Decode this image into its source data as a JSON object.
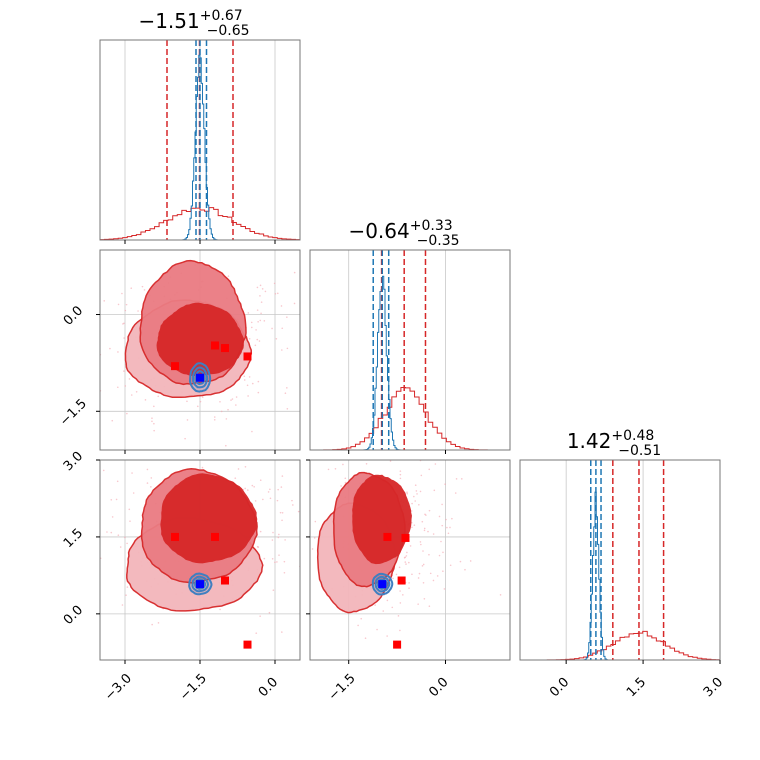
{
  "chart_data": {
    "type": "corner",
    "parameters": [
      "p1",
      "p2",
      "p3"
    ],
    "colors": {
      "wide": "#d62728",
      "narrow": "#1f77b4",
      "points_wide": "#ff0000",
      "points_narrow": "#0000ff",
      "grid": "#c8c8c8"
    },
    "titles": [
      {
        "median": "−1.51",
        "plus": "+0.67",
        "minus": "−0.65"
      },
      {
        "median": "−0.64",
        "plus": "+0.33",
        "minus": "−0.35"
      },
      {
        "median": "1.42",
        "plus": "+0.48",
        "minus": "−0.51"
      }
    ],
    "ranges": [
      [
        -3.5,
        0.5
      ],
      [
        -2.1,
        1.0
      ],
      [
        -0.9,
        3.0
      ]
    ],
    "ticks": {
      "p1": [
        -3.0,
        -1.5,
        0.0
      ],
      "p2": [
        -1.5,
        0.0
      ],
      "p3": [
        0.0,
        1.5,
        3.0
      ]
    },
    "tick_labels": {
      "p1": [
        "−3.0",
        "−1.5",
        "0.0"
      ],
      "p2": [
        "−1.5",
        "0.0"
      ],
      "p3": [
        "0.0",
        "1.5",
        "3.0"
      ]
    },
    "quantile_lines": {
      "narrow": [
        [
          -1.58,
          -1.5,
          -1.37
        ],
        [
          -1.12,
          -0.98,
          -0.88
        ],
        [
          0.48,
          0.58,
          0.68
        ]
      ],
      "wide": [
        [
          -2.16,
          -1.51,
          -0.84
        ],
        [
          -0.99,
          -0.64,
          -0.31
        ],
        [
          0.91,
          1.42,
          1.9
        ]
      ]
    },
    "histograms": [
      {
        "param": "p1",
        "wide_mu": -1.51,
        "wide_sigma": 0.66,
        "wide_peak": 0.16,
        "narrow_mu": -1.5,
        "narrow_sigma": 0.09,
        "narrow_peak": 0.9
      },
      {
        "param": "p2",
        "wide_mu": -0.62,
        "wide_sigma": 0.34,
        "wide_peak": 0.29,
        "narrow_mu": -0.98,
        "narrow_sigma": 0.07,
        "narrow_peak": 0.85
      },
      {
        "param": "p3",
        "wide_mu": 1.42,
        "wide_sigma": 0.5,
        "wide_peak": 0.14,
        "narrow_mu": 0.58,
        "narrow_sigma": 0.06,
        "narrow_peak": 0.8
      }
    ],
    "scatter_2d": [
      {
        "x_param": "p1",
        "y_param": "p2",
        "wide_center": [
          -1.55,
          -0.55
        ],
        "wide_extent": [
          [
            -3.0,
            -1.3,
            1.25,
            0.75
          ],
          [
            -2.7,
            -1.1,
            1.05,
            0.95
          ],
          [
            -2.35,
            -0.95,
            0.85,
            0.55
          ]
        ],
        "narrow_center": [
          -1.5,
          -0.98
        ],
        "narrow_extent": [
          0.2,
          0.22
        ],
        "red_points": [
          [
            -2.0,
            -0.8
          ],
          [
            -1.2,
            -0.48
          ],
          [
            -1.0,
            -0.52
          ],
          [
            -0.55,
            -0.65
          ]
        ],
        "blue_point": [
          -1.5,
          -0.98
        ]
      },
      {
        "x_param": "p1",
        "y_param": "p3",
        "wide_center": [
          -1.5,
          1.5
        ],
        "wide_extent": [
          [
            -3.0,
            0.05,
            1.35,
            0.9
          ],
          [
            -2.7,
            0.6,
            1.15,
            1.1
          ],
          [
            -2.3,
            1.0,
            0.95,
            0.85
          ]
        ],
        "narrow_center": [
          -1.5,
          0.58
        ],
        "narrow_extent": [
          0.22,
          0.2
        ],
        "red_points": [
          [
            -2.0,
            1.5
          ],
          [
            -1.2,
            1.5
          ],
          [
            -1.0,
            0.65
          ],
          [
            -0.55,
            -0.6
          ]
        ],
        "blue_point": [
          -1.5,
          0.58
        ]
      },
      {
        "x_param": "p2",
        "y_param": "p3",
        "wide_center": [
          -0.8,
          1.5
        ],
        "wide_extent": [
          [
            -2.0,
            0.05,
            0.6,
            1.05
          ],
          [
            -1.75,
            0.55,
            0.55,
            1.1
          ],
          [
            -1.45,
            1.0,
            0.45,
            0.85
          ]
        ],
        "narrow_center": [
          -0.98,
          0.58
        ],
        "narrow_extent": [
          0.15,
          0.2
        ],
        "red_points": [
          [
            -0.9,
            1.5
          ],
          [
            -0.62,
            1.48
          ],
          [
            -0.68,
            0.65
          ],
          [
            -0.75,
            -0.6
          ]
        ],
        "blue_point": [
          -0.98,
          0.58
        ]
      }
    ]
  }
}
